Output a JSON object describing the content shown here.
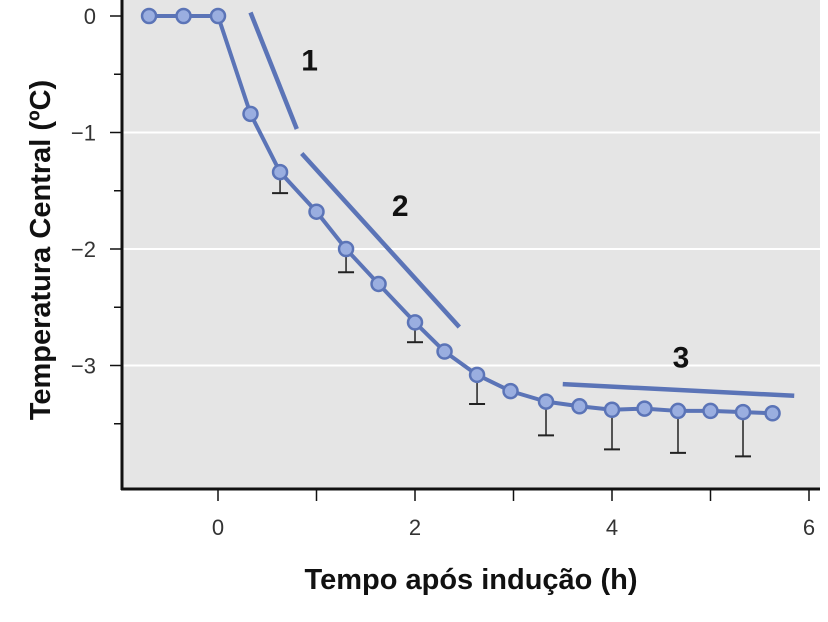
{
  "chart_data": {
    "type": "line",
    "xlabel": "Tempo após indução (h)",
    "ylabel": "Temperatura Central (ºC)",
    "xlim": [
      -1,
      6
    ],
    "ylim": [
      -4.05,
      0
    ],
    "x_ticks": [
      0,
      2,
      4,
      6
    ],
    "x_tick_labels": [
      "0",
      "2",
      "4",
      "6"
    ],
    "y_ticks": [
      0,
      -1,
      -2,
      -3
    ],
    "y_tick_labels": [
      "0",
      "−1",
      "−2",
      "−3"
    ],
    "grid": "horizontal",
    "background": "#e5e5e5",
    "series": [
      {
        "color": "#5b74b7",
        "marker_fill": "#9aaee0",
        "x": [
          -0.7,
          -0.35,
          0,
          0.33,
          0.63,
          1.0,
          1.3,
          1.63,
          2.0,
          2.3,
          2.63,
          2.97,
          3.33,
          3.67,
          4.0,
          4.33,
          4.67,
          5.0,
          5.33,
          5.63
        ],
        "y": [
          0,
          0,
          0,
          -0.84,
          -1.34,
          -1.68,
          -2.0,
          -2.3,
          -2.63,
          -2.88,
          -3.08,
          -3.22,
          -3.31,
          -3.35,
          -3.38,
          -3.37,
          -3.39,
          -3.39,
          -3.4,
          -3.41
        ],
        "error_lower": [
          null,
          null,
          null,
          null,
          -1.52,
          null,
          -2.2,
          null,
          -2.8,
          null,
          -3.33,
          null,
          -3.6,
          null,
          -3.72,
          null,
          -3.75,
          null,
          -3.78,
          null
        ]
      }
    ],
    "trend_lines": [
      {
        "label": "1",
        "x": [
          0.33,
          0.8
        ],
        "y": [
          0.03,
          -0.97
        ]
      },
      {
        "label": "2",
        "x": [
          0.85,
          2.45
        ],
        "y": [
          -1.18,
          -2.67
        ]
      },
      {
        "label": "3",
        "x": [
          3.5,
          5.85
        ],
        "y": [
          -3.16,
          -3.26
        ]
      }
    ],
    "annotations": [
      {
        "text": "1",
        "x": 0.93,
        "y": -0.38
      },
      {
        "text": "2",
        "x": 1.85,
        "y": -1.63
      },
      {
        "text": "3",
        "x": 4.7,
        "y": -2.93
      }
    ]
  }
}
